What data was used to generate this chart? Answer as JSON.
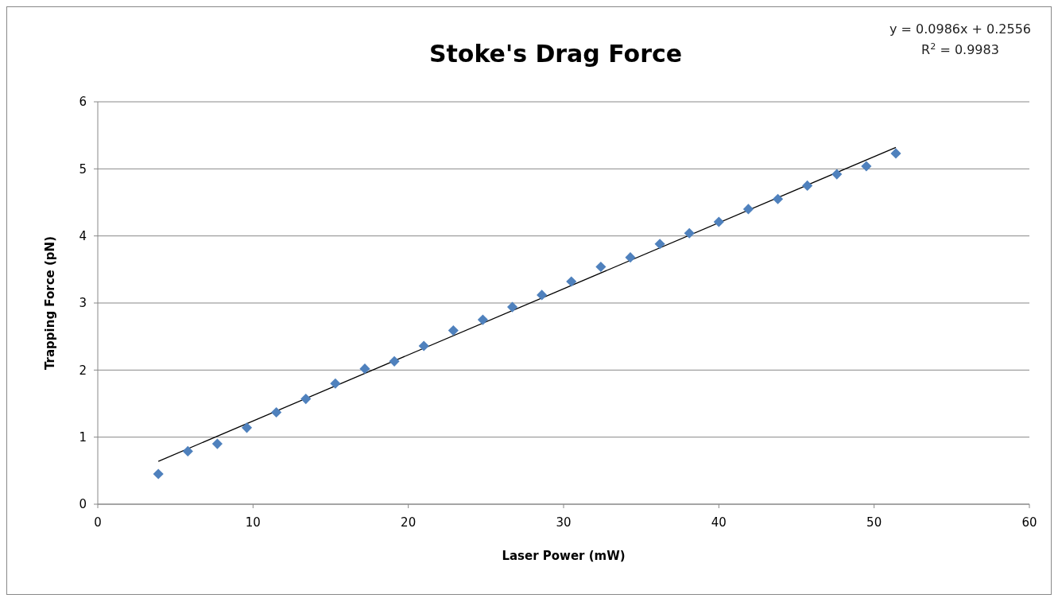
{
  "chart_data": {
    "type": "scatter",
    "title": "Stoke's Drag Force",
    "xlabel": "Laser Power (mW)",
    "ylabel": "Trapping Force (pN)",
    "annotations": [
      "y = 0.0986x + 0.2556",
      "R$^{2}$ = 0.9983"
    ],
    "xlim": [
      0,
      60
    ],
    "xticks": [
      0,
      10,
      20,
      30,
      40,
      50,
      60
    ],
    "ylim": [
      0,
      6
    ],
    "yticks": [
      0,
      1,
      2,
      3,
      4,
      5,
      6
    ],
    "grid": "y",
    "series": [
      {
        "color": "#4f81bd",
        "marker": "diamond",
        "x": [
          3.9,
          5.8,
          7.7,
          9.6,
          11.5,
          13.4,
          15.3,
          17.2,
          19.1,
          21.0,
          22.9,
          24.8,
          26.7,
          28.6,
          30.5,
          32.4,
          34.3,
          36.2,
          38.1,
          40.0,
          41.9,
          43.8,
          45.7,
          47.6,
          49.5,
          51.4
        ],
        "values": [
          0.45,
          0.79,
          0.9,
          1.14,
          1.37,
          1.57,
          1.8,
          2.02,
          2.13,
          2.36,
          2.59,
          2.75,
          2.94,
          3.12,
          3.32,
          3.54,
          3.68,
          3.88,
          4.04,
          4.21,
          4.4,
          4.55,
          4.75,
          4.92,
          5.04,
          5.23
        ]
      },
      {
        "type": "line",
        "color": "#000000",
        "marker": "none",
        "x": [
          3.9,
          51.4
        ],
        "values": [
          0.64,
          5.32
        ]
      }
    ]
  }
}
